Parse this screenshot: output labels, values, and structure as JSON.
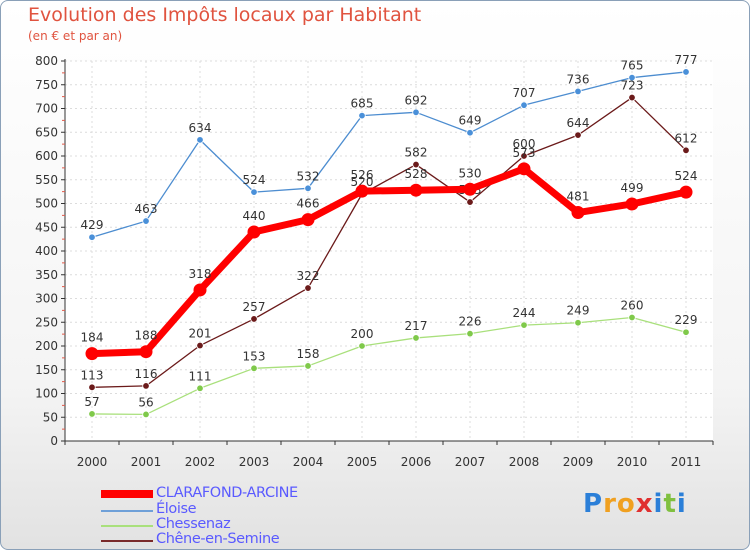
{
  "chart_data": {
    "type": "line",
    "title": "Evolution des Impôts locaux par Habitant",
    "subtitle": "(en € et par an)",
    "xlabel": "",
    "ylabel": "",
    "ylim": [
      0,
      800
    ],
    "yticks": [
      0,
      50,
      100,
      150,
      200,
      250,
      300,
      350,
      400,
      450,
      500,
      550,
      600,
      650,
      700,
      750,
      800
    ],
    "grid": true,
    "legend_position": "bottom-left",
    "categories": [
      "2000",
      "2001",
      "2002",
      "2003",
      "2004",
      "2005",
      "2006",
      "2007",
      "2008",
      "2009",
      "2010",
      "2011"
    ],
    "series": [
      {
        "name": "Éloise",
        "color": "#4d8dd0",
        "marker": "#4a90d9",
        "values": [
          429,
          463,
          634,
          524,
          532,
          685,
          692,
          649,
          707,
          736,
          765,
          777
        ]
      },
      {
        "name": "Chêne-en-Semine",
        "color": "#6b1a1a",
        "marker": "#6b1a1a",
        "values": [
          113,
          116,
          201,
          257,
          322,
          520,
          582,
          503,
          600,
          644,
          723,
          612
        ]
      },
      {
        "name": "Chessenaz",
        "color": "#a9e07c",
        "marker": "#7fc94a",
        "values": [
          57,
          56,
          111,
          153,
          158,
          200,
          217,
          226,
          244,
          249,
          260,
          229
        ]
      },
      {
        "name": "CLARAFOND-ARCINE",
        "color": "#ff0000",
        "marker": "#ff0000",
        "values": [
          184,
          188,
          318,
          440,
          466,
          526,
          528,
          530,
          573,
          481,
          499,
          524
        ]
      }
    ]
  },
  "legend": [
    {
      "label": "CLARAFOND-ARCINE",
      "color": "#ff0000"
    },
    {
      "label": "Éloise",
      "color": "#6fa0d8"
    },
    {
      "label": "Chessenaz",
      "color": "#a9e07c"
    },
    {
      "label": "Chêne-en-Semine",
      "color": "#7a2a2a"
    }
  ],
  "logo": {
    "letters": [
      "P",
      "r",
      "o",
      "x",
      "i",
      "t",
      "i"
    ],
    "colors": [
      "#2b7fd8",
      "#f0a020",
      "#f0a020",
      "#e03030",
      "#2b7fd8",
      "#80c040",
      "#2b7fd8"
    ]
  }
}
